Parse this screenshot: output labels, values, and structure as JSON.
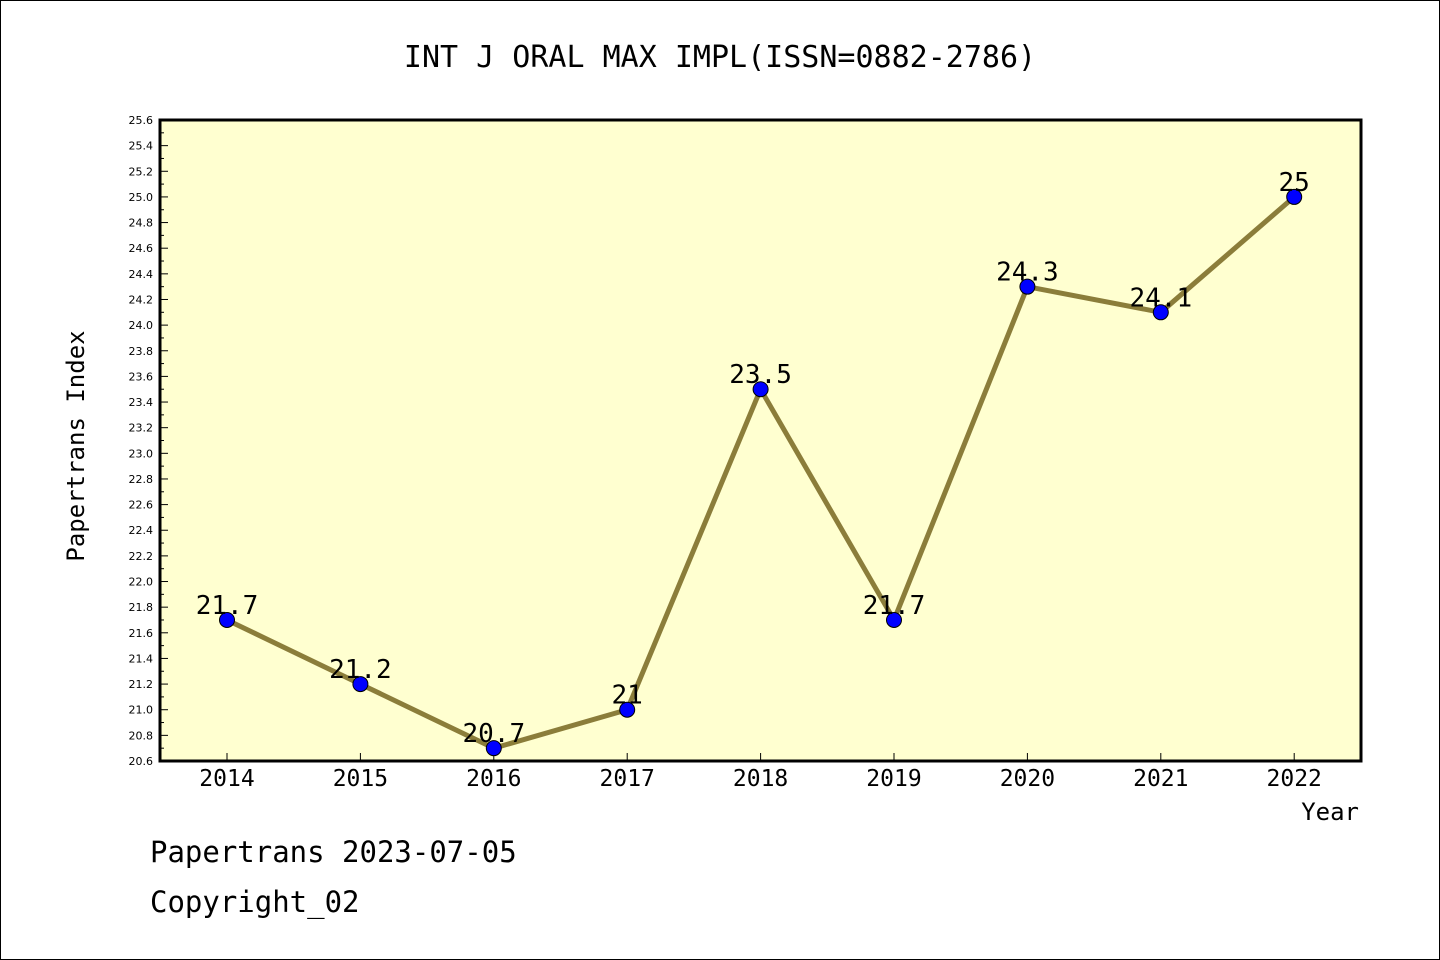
{
  "chart_data": {
    "type": "line",
    "title": "INT J ORAL MAX IMPL(ISSN=0882-2786)",
    "xlabel": "Year",
    "ylabel": "Papertrans Index",
    "categories": [
      "2014",
      "2015",
      "2016",
      "2017",
      "2018",
      "2019",
      "2020",
      "2021",
      "2022"
    ],
    "values": [
      21.7,
      21.2,
      20.7,
      21.0,
      23.5,
      21.7,
      24.3,
      24.1,
      25.0
    ],
    "data_labels": [
      "21.7",
      "21.2",
      "20.7",
      "21",
      "23.5",
      "21.7",
      "24.3",
      "24.1",
      "25"
    ],
    "ylim": [
      20.6,
      25.6
    ],
    "ytick_step": 0.2,
    "grid": false,
    "colors": {
      "plot_background": "#ffffd0",
      "line": "#8b7d3a",
      "marker": "#0000ff"
    }
  },
  "footer": {
    "line1": "Papertrans 2023-07-05",
    "line2": "Copyright_02"
  }
}
